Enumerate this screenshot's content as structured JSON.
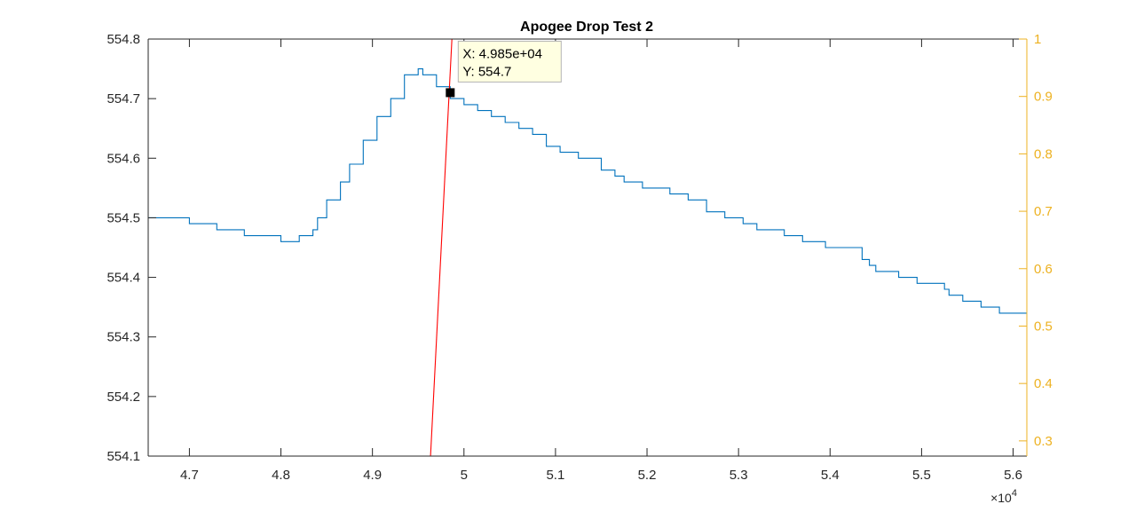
{
  "chart_data": {
    "type": "line",
    "title": "Apogee Drop Test 2",
    "xlabel": "",
    "ylabel": "",
    "x_exponent_label": "×10",
    "x_exponent_power": "4",
    "xlim": [
      4.655,
      5.615
    ],
    "xtick_values": [
      4.7,
      4.8,
      4.9,
      5.0,
      5.1,
      5.2,
      5.3,
      5.4,
      5.5,
      5.6
    ],
    "xtick_labels": [
      "4.7",
      "4.8",
      "4.9",
      "5",
      "5.1",
      "5.2",
      "5.3",
      "5.4",
      "5.5",
      "5.6"
    ],
    "y_left": {
      "lim": [
        554.1,
        554.8
      ],
      "tick_values": [
        554.1,
        554.2,
        554.3,
        554.4,
        554.5,
        554.6,
        554.7,
        554.8
      ],
      "tick_labels": [
        "554.1",
        "554.2",
        "554.3",
        "554.4",
        "554.5",
        "554.6",
        "554.7",
        "554.8"
      ],
      "color": "#262626"
    },
    "y_right": {
      "lim": [
        0.2735,
        1.0
      ],
      "tick_values": [
        0.3,
        0.4,
        0.5,
        0.6,
        0.7,
        0.8,
        0.9,
        1.0
      ],
      "tick_labels": [
        "0.3",
        "0.4",
        "0.5",
        "0.6",
        "0.7",
        "0.8",
        "0.9",
        "1"
      ],
      "color": "#EDB120"
    },
    "grid": false,
    "series": [
      {
        "axis": "left",
        "color": "#0072BD",
        "step": true,
        "x": [
          4.655,
          4.7,
          4.73,
          4.76,
          4.8,
          4.82,
          4.835,
          4.84,
          4.85,
          4.865,
          4.875,
          4.89,
          4.905,
          4.92,
          4.935,
          4.945,
          4.95,
          4.955,
          4.97,
          4.985,
          5.0,
          5.015,
          5.03,
          5.045,
          5.06,
          5.075,
          5.09,
          5.105,
          5.125,
          5.15,
          5.165,
          5.175,
          5.195,
          5.225,
          5.245,
          5.265,
          5.285,
          5.305,
          5.32,
          5.35,
          5.37,
          5.395,
          5.435,
          5.443,
          5.45,
          5.475,
          5.495,
          5.525,
          5.53,
          5.545,
          5.565,
          5.585
        ],
        "y": [
          554.5,
          554.49,
          554.48,
          554.47,
          554.46,
          554.47,
          554.48,
          554.5,
          554.53,
          554.56,
          554.59,
          554.63,
          554.67,
          554.7,
          554.74,
          554.74,
          554.75,
          554.74,
          554.72,
          554.7,
          554.69,
          554.68,
          554.67,
          554.66,
          554.65,
          554.64,
          554.62,
          554.61,
          554.6,
          554.58,
          554.57,
          554.56,
          554.55,
          554.54,
          554.53,
          554.51,
          554.5,
          554.49,
          554.48,
          554.47,
          554.46,
          554.45,
          554.43,
          554.42,
          554.41,
          554.4,
          554.39,
          554.38,
          554.37,
          554.36,
          554.35,
          554.34
        ]
      },
      {
        "axis": "right",
        "color": "#FF0000",
        "step": false,
        "x": [
          4.9635,
          4.9868
        ],
        "y": [
          0.2735,
          1.0
        ]
      }
    ],
    "datatip": {
      "x": 4.985,
      "y": 554.71,
      "line1": "X: 4.985e+04",
      "line2": "Y: 554.7"
    }
  }
}
